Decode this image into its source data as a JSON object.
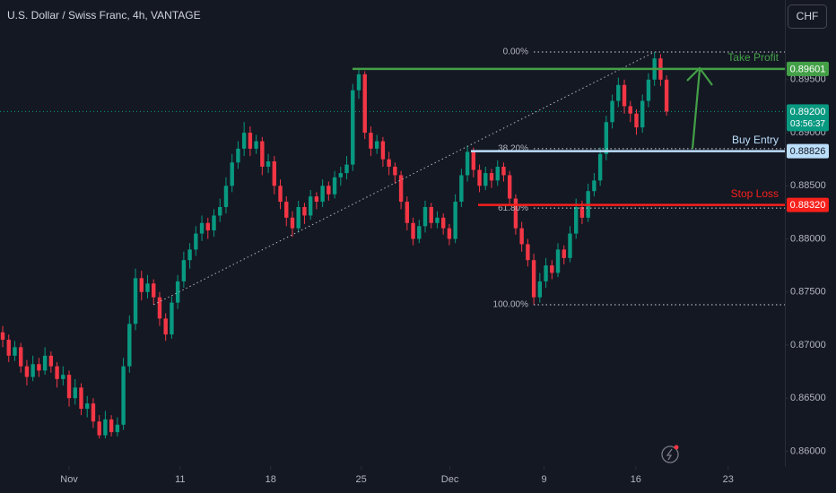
{
  "chart_data": {
    "type": "candlestick",
    "title": "U.S. Dollar / Swiss Franc, 4h, VANTAGE",
    "currency": "CHF",
    "up_color": "#089981",
    "down_color": "#f23645",
    "xlim": [
      -0.45,
      129.6
    ],
    "xticks": [
      {
        "value": 11,
        "label": "Nov"
      },
      {
        "value": 29.4,
        "label": "11"
      },
      {
        "value": 44.4,
        "label": "18"
      },
      {
        "value": 59.4,
        "label": "25"
      },
      {
        "value": 74.1,
        "label": "Dec"
      },
      {
        "value": 89.7,
        "label": "9"
      },
      {
        "value": 104.9,
        "label": "16"
      },
      {
        "value": 120.2,
        "label": "23"
      }
    ],
    "ylim": [
      0.8586,
      0.9025
    ],
    "yticks": [
      {
        "value": 0.86,
        "label": "0.86000"
      },
      {
        "value": 0.865,
        "label": "0.86500"
      },
      {
        "value": 0.87,
        "label": "0.87000"
      },
      {
        "value": 0.875,
        "label": "0.87500"
      },
      {
        "value": 0.88,
        "label": "0.88000"
      },
      {
        "value": 0.885,
        "label": "0.88500"
      },
      {
        "value": 0.89,
        "label": "0.89000"
      },
      {
        "value": 0.895,
        "label": "0.89500"
      }
    ],
    "current_price": {
      "value": 0.892,
      "label": "0.89200",
      "countdown": "03:56:37",
      "color": "#089981"
    },
    "levels": [
      {
        "name": "Take Profit",
        "value": 0.89601,
        "label": "0.89601",
        "color": "#43a047"
      },
      {
        "name": "Buy Entry",
        "value": 0.88826,
        "label": "0.88826",
        "color": "#bbdefb"
      },
      {
        "name": "Stop Loss",
        "value": 0.8832,
        "label": "0.88320",
        "color": "#f7201b"
      }
    ],
    "fib_levels": [
      {
        "value": 0.8976,
        "label": "0.00%"
      },
      {
        "value": 0.8885,
        "label": "38.20%"
      },
      {
        "value": 0.8829,
        "label": "61.80%"
      },
      {
        "value": 0.8738,
        "label": "100.00%"
      }
    ],
    "candles": [
      [
        0.8712,
        0.8718,
        0.8698,
        0.8705
      ],
      [
        0.8705,
        0.871,
        0.8684,
        0.869
      ],
      [
        0.869,
        0.8704,
        0.8685,
        0.8698
      ],
      [
        0.8698,
        0.8702,
        0.8674,
        0.868
      ],
      [
        0.868,
        0.8686,
        0.8662,
        0.867
      ],
      [
        0.867,
        0.869,
        0.8666,
        0.8682
      ],
      [
        0.8682,
        0.8688,
        0.867,
        0.8676
      ],
      [
        0.8676,
        0.8698,
        0.8672,
        0.869
      ],
      [
        0.869,
        0.8694,
        0.8674,
        0.868
      ],
      [
        0.868,
        0.8684,
        0.866,
        0.8668
      ],
      [
        0.8668,
        0.868,
        0.8662,
        0.8672
      ],
      [
        0.8672,
        0.8676,
        0.8642,
        0.865
      ],
      [
        0.865,
        0.8668,
        0.8644,
        0.866
      ],
      [
        0.866,
        0.8664,
        0.8634,
        0.864
      ],
      [
        0.864,
        0.8652,
        0.8632,
        0.8645
      ],
      [
        0.8645,
        0.865,
        0.8622,
        0.8628
      ],
      [
        0.8628,
        0.8634,
        0.8612,
        0.8615
      ],
      [
        0.8615,
        0.8638,
        0.8612,
        0.863
      ],
      [
        0.863,
        0.8634,
        0.8614,
        0.8618
      ],
      [
        0.8618,
        0.8632,
        0.8614,
        0.8625
      ],
      [
        0.8625,
        0.8688,
        0.862,
        0.868
      ],
      [
        0.868,
        0.8728,
        0.8674,
        0.872
      ],
      [
        0.872,
        0.8772,
        0.8714,
        0.8763
      ],
      [
        0.8763,
        0.877,
        0.8742,
        0.875
      ],
      [
        0.875,
        0.8766,
        0.8744,
        0.8758
      ],
      [
        0.8758,
        0.8762,
        0.8738,
        0.8745
      ],
      [
        0.8745,
        0.875,
        0.8718,
        0.8725
      ],
      [
        0.8725,
        0.873,
        0.8704,
        0.871
      ],
      [
        0.871,
        0.8746,
        0.8706,
        0.874
      ],
      [
        0.874,
        0.8766,
        0.8734,
        0.876
      ],
      [
        0.876,
        0.8788,
        0.8754,
        0.878
      ],
      [
        0.878,
        0.8796,
        0.8772,
        0.879
      ],
      [
        0.879,
        0.8812,
        0.8784,
        0.8805
      ],
      [
        0.8805,
        0.8822,
        0.8798,
        0.8815
      ],
      [
        0.8815,
        0.882,
        0.88,
        0.8808
      ],
      [
        0.8808,
        0.8828,
        0.8802,
        0.8822
      ],
      [
        0.8822,
        0.8838,
        0.8816,
        0.883
      ],
      [
        0.883,
        0.8858,
        0.8824,
        0.885
      ],
      [
        0.885,
        0.888,
        0.8844,
        0.8872
      ],
      [
        0.8872,
        0.8892,
        0.8866,
        0.8885
      ],
      [
        0.8885,
        0.891,
        0.8878,
        0.89
      ],
      [
        0.89,
        0.8906,
        0.8878,
        0.8885
      ],
      [
        0.8885,
        0.8898,
        0.888,
        0.8892
      ],
      [
        0.8892,
        0.8896,
        0.886,
        0.8868
      ],
      [
        0.8868,
        0.888,
        0.8862,
        0.8873
      ],
      [
        0.8873,
        0.8878,
        0.8842,
        0.885
      ],
      [
        0.885,
        0.8856,
        0.8828,
        0.8835
      ],
      [
        0.8835,
        0.884,
        0.8812,
        0.882
      ],
      [
        0.882,
        0.8826,
        0.8802,
        0.881
      ],
      [
        0.881,
        0.8836,
        0.8806,
        0.883
      ],
      [
        0.883,
        0.8834,
        0.8814,
        0.8822
      ],
      [
        0.8822,
        0.8846,
        0.8818,
        0.884
      ],
      [
        0.884,
        0.8844,
        0.8828,
        0.8835
      ],
      [
        0.8835,
        0.8856,
        0.883,
        0.885
      ],
      [
        0.885,
        0.8854,
        0.8836,
        0.8842
      ],
      [
        0.8842,
        0.8864,
        0.8838,
        0.8858
      ],
      [
        0.8858,
        0.8868,
        0.885,
        0.8862
      ],
      [
        0.8862,
        0.8878,
        0.8856,
        0.887
      ],
      [
        0.887,
        0.8946,
        0.8864,
        0.894
      ],
      [
        0.894,
        0.8959,
        0.8932,
        0.8955
      ],
      [
        0.8955,
        0.8958,
        0.8894,
        0.89
      ],
      [
        0.89,
        0.8906,
        0.8878,
        0.8885
      ],
      [
        0.8885,
        0.8898,
        0.888,
        0.8892
      ],
      [
        0.8892,
        0.8896,
        0.8868,
        0.8875
      ],
      [
        0.8875,
        0.8882,
        0.886,
        0.8868
      ],
      [
        0.8868,
        0.8872,
        0.8852,
        0.886
      ],
      [
        0.886,
        0.8864,
        0.8828,
        0.8835
      ],
      [
        0.8835,
        0.884,
        0.8808,
        0.8815
      ],
      [
        0.8815,
        0.882,
        0.8794,
        0.88
      ],
      [
        0.88,
        0.8818,
        0.8796,
        0.8812
      ],
      [
        0.8812,
        0.8836,
        0.8806,
        0.883
      ],
      [
        0.883,
        0.8834,
        0.881,
        0.8815
      ],
      [
        0.8815,
        0.8826,
        0.881,
        0.882
      ],
      [
        0.882,
        0.8824,
        0.8804,
        0.881
      ],
      [
        0.881,
        0.8814,
        0.8794,
        0.88
      ],
      [
        0.88,
        0.8842,
        0.8796,
        0.8835
      ],
      [
        0.8835,
        0.8866,
        0.883,
        0.886
      ],
      [
        0.886,
        0.8888,
        0.8854,
        0.8882
      ],
      [
        0.8882,
        0.8886,
        0.8858,
        0.8865
      ],
      [
        0.8865,
        0.887,
        0.8844,
        0.885
      ],
      [
        0.885,
        0.8868,
        0.8846,
        0.8862
      ],
      [
        0.8862,
        0.8866,
        0.8848,
        0.8855
      ],
      [
        0.8855,
        0.8874,
        0.885,
        0.8868
      ],
      [
        0.8868,
        0.8872,
        0.8854,
        0.886
      ],
      [
        0.886,
        0.8864,
        0.8832,
        0.8838
      ],
      [
        0.8838,
        0.8842,
        0.8804,
        0.881
      ],
      [
        0.881,
        0.8816,
        0.8788,
        0.8795
      ],
      [
        0.8795,
        0.88,
        0.8774,
        0.878
      ],
      [
        0.878,
        0.8786,
        0.8738,
        0.8745
      ],
      [
        0.8745,
        0.8768,
        0.874,
        0.876
      ],
      [
        0.876,
        0.8782,
        0.8754,
        0.8775
      ],
      [
        0.8775,
        0.878,
        0.8762,
        0.8768
      ],
      [
        0.8768,
        0.8796,
        0.8764,
        0.879
      ],
      [
        0.879,
        0.8794,
        0.8776,
        0.8782
      ],
      [
        0.8782,
        0.8812,
        0.8778,
        0.8805
      ],
      [
        0.8805,
        0.8838,
        0.88,
        0.883
      ],
      [
        0.883,
        0.8836,
        0.8814,
        0.882
      ],
      [
        0.882,
        0.8852,
        0.8816,
        0.8845
      ],
      [
        0.8845,
        0.8862,
        0.884,
        0.8855
      ],
      [
        0.8855,
        0.8886,
        0.885,
        0.888
      ],
      [
        0.888,
        0.8916,
        0.8874,
        0.891
      ],
      [
        0.891,
        0.8936,
        0.8904,
        0.893
      ],
      [
        0.893,
        0.8952,
        0.8924,
        0.8945
      ],
      [
        0.8945,
        0.895,
        0.8918,
        0.8925
      ],
      [
        0.8925,
        0.893,
        0.891,
        0.8918
      ],
      [
        0.8918,
        0.8922,
        0.8898,
        0.8905
      ],
      [
        0.8905,
        0.8936,
        0.89,
        0.893
      ],
      [
        0.893,
        0.8956,
        0.8924,
        0.895
      ],
      [
        0.895,
        0.8976,
        0.8944,
        0.897
      ],
      [
        0.897,
        0.8974,
        0.8944,
        0.895
      ],
      [
        0.895,
        0.8954,
        0.8916,
        0.892
      ]
    ]
  }
}
